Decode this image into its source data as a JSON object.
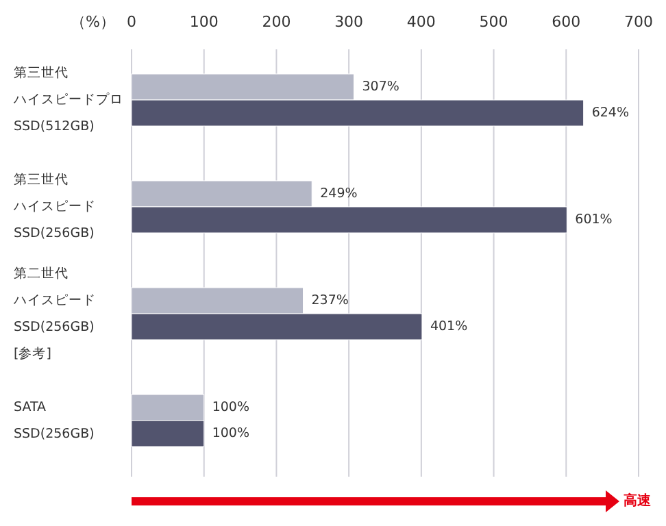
{
  "chart_data": {
    "type": "bar",
    "orientation": "horizontal",
    "xlabel": "（%）",
    "categories": [
      "第三世代ハイスピードプロSSD(512GB)",
      "第三世代ハイスピードSSD(256GB)",
      "第二世代ハイスピードSSD(256GB)[参考]",
      "SATA SSD(256GB)"
    ],
    "series": [
      {
        "color": "#b4b7c6",
        "values": [
          307,
          249,
          237,
          100
        ],
        "value_labels": [
          "307%",
          "249%",
          "237%",
          "100%"
        ]
      },
      {
        "color": "#52546e",
        "values": [
          624,
          601,
          401,
          100
        ],
        "value_labels": [
          "624%",
          "601%",
          "401%",
          "100%"
        ]
      }
    ],
    "xlim": [
      0,
      700
    ],
    "xticks": [
      0,
      100,
      200,
      300,
      400,
      500,
      600,
      700
    ],
    "grid": "x",
    "annotations": [
      "高速"
    ]
  }
}
